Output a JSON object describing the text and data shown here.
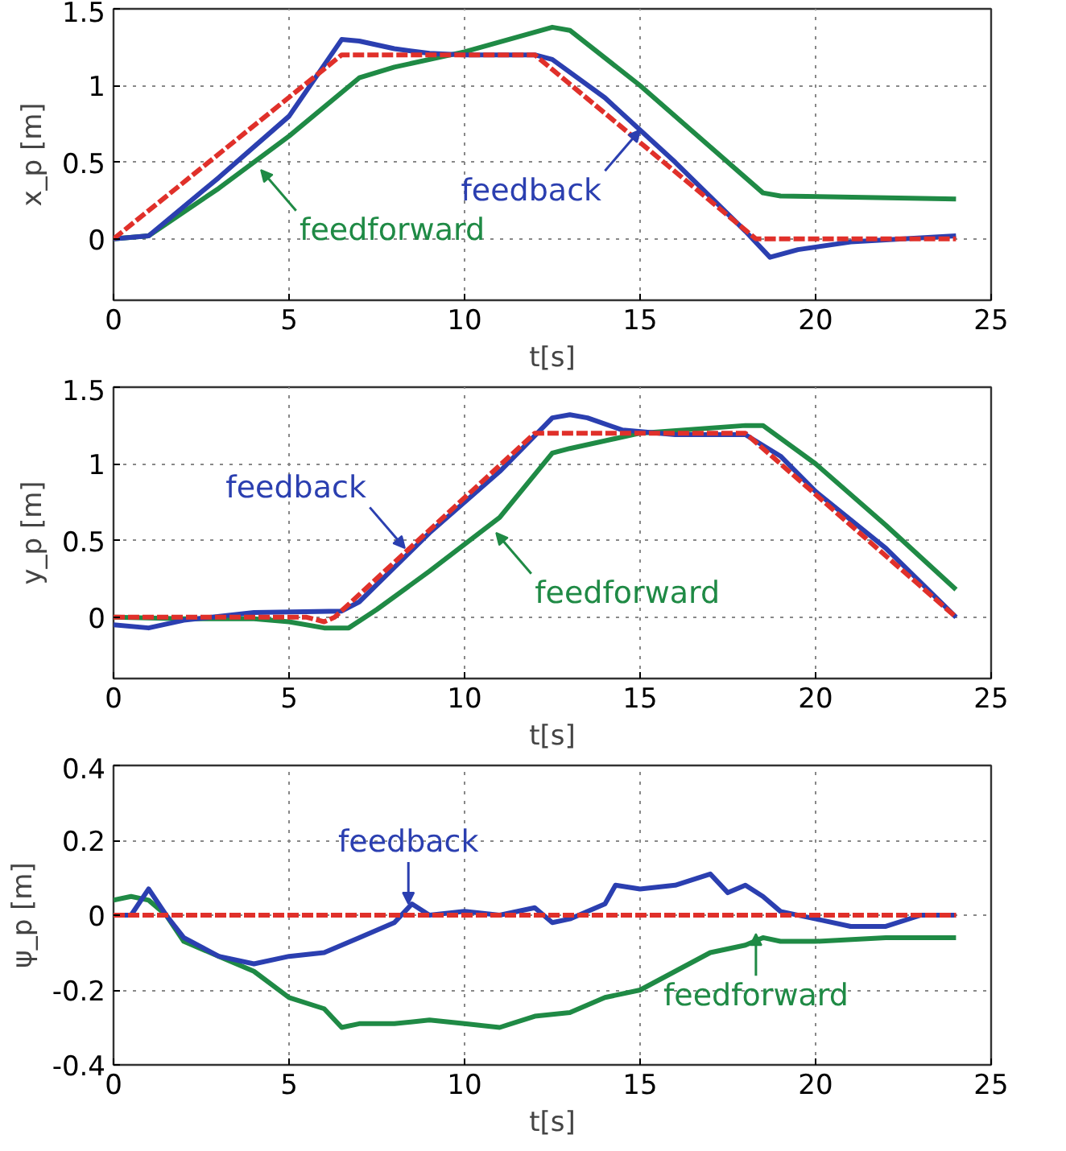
{
  "chart_data": [
    {
      "type": "line",
      "xlabel": "t[s]",
      "ylabel": "x_p [m]",
      "xlim": [
        0,
        25
      ],
      "xticks": [
        0,
        5,
        10,
        15,
        20,
        25
      ],
      "ylim": [
        -0.4,
        1.5
      ],
      "yticks": [
        0,
        0.5,
        1,
        1.5
      ],
      "grid": true,
      "series": [
        {
          "color": "#e0302a",
          "line_style": "dashed",
          "x": [
            0,
            6.5,
            12,
            18.3,
            24
          ],
          "values": [
            0,
            1.2,
            1.2,
            0,
            0
          ]
        },
        {
          "color": "#1f8a45",
          "x": [
            0,
            1,
            3,
            5,
            7,
            8,
            10,
            12.5,
            13,
            15,
            17,
            18.5,
            19,
            24
          ],
          "values": [
            0,
            0.02,
            0.33,
            0.67,
            1.05,
            1.12,
            1.22,
            1.38,
            1.36,
            1.0,
            0.6,
            0.3,
            0.28,
            0.26
          ]
        },
        {
          "color": "#2b3fb0",
          "x": [
            0,
            1,
            3,
            5,
            6.5,
            7,
            8,
            9,
            10,
            12,
            12.5,
            14,
            16,
            18,
            18.7,
            19.5,
            21,
            24
          ],
          "values": [
            0,
            0.02,
            0.4,
            0.8,
            1.3,
            1.29,
            1.24,
            1.21,
            1.2,
            1.2,
            1.17,
            0.92,
            0.5,
            0.05,
            -0.12,
            -0.07,
            -0.02,
            0.02
          ]
        }
      ],
      "annotations": [
        {
          "text": "feedforward",
          "x": 4.2,
          "y": 0.45
        },
        {
          "text": "feedback",
          "x": 15,
          "y": 0.71
        }
      ]
    },
    {
      "type": "line",
      "xlabel": "t[s]",
      "ylabel": "y_p [m]",
      "xlim": [
        0,
        25
      ],
      "xticks": [
        0,
        5,
        10,
        15,
        20,
        25
      ],
      "ylim": [
        -0.4,
        1.5
      ],
      "yticks": [
        0,
        0.5,
        1,
        1.5
      ],
      "grid": true,
      "series": [
        {
          "color": "#e0302a",
          "line_style": "dashed",
          "x": [
            0,
            5.5,
            6,
            6.3,
            12,
            18,
            24
          ],
          "values": [
            0,
            0,
            -0.03,
            0,
            1.2,
            1.2,
            0
          ]
        },
        {
          "color": "#1f8a45",
          "x": [
            0,
            2,
            4,
            5,
            6,
            6.7,
            7.5,
            9,
            11,
            12.5,
            13,
            15,
            18,
            18.5,
            20,
            22,
            24
          ],
          "values": [
            0,
            -0.01,
            -0.01,
            -0.03,
            -0.07,
            -0.07,
            0.05,
            0.3,
            0.65,
            1.07,
            1.1,
            1.2,
            1.25,
            1.25,
            1.0,
            0.6,
            0.18
          ]
        },
        {
          "color": "#2b3fb0",
          "x": [
            0,
            1,
            2,
            4,
            6.5,
            7,
            9,
            11,
            12.5,
            13,
            13.5,
            14.5,
            16,
            18,
            19,
            20,
            22,
            24
          ],
          "values": [
            -0.05,
            -0.07,
            -0.02,
            0.03,
            0.04,
            0.1,
            0.55,
            0.95,
            1.3,
            1.32,
            1.3,
            1.22,
            1.19,
            1.19,
            1.05,
            0.82,
            0.45,
            0
          ]
        }
      ],
      "annotations": [
        {
          "text": "feedback",
          "x": 8.3,
          "y": 0.45
        },
        {
          "text": "feedforward",
          "x": 10.9,
          "y": 0.55
        }
      ]
    },
    {
      "type": "line",
      "xlabel": "t[s]",
      "ylabel": "ψ_p [m]",
      "xlim": [
        0,
        25
      ],
      "xticks": [
        0,
        5,
        10,
        15,
        20,
        25
      ],
      "ylim": [
        -0.4,
        0.4
      ],
      "yticks": [
        -0.4,
        -0.2,
        0,
        0.2,
        0.4
      ],
      "grid": true,
      "series": [
        {
          "color": "#e0302a",
          "line_style": "dashed",
          "x": [
            0,
            24
          ],
          "values": [
            0,
            0
          ]
        },
        {
          "color": "#1f8a45",
          "x": [
            0,
            0.5,
            1,
            1.5,
            2,
            3,
            4,
            5,
            6,
            6.5,
            7,
            8,
            9,
            10,
            11,
            12,
            13,
            14,
            15,
            16,
            17,
            18,
            18.5,
            19,
            20,
            22,
            24
          ],
          "values": [
            0.04,
            0.05,
            0.04,
            0.0,
            -0.07,
            -0.11,
            -0.15,
            -0.22,
            -0.25,
            -0.3,
            -0.29,
            -0.29,
            -0.28,
            -0.29,
            -0.3,
            -0.27,
            -0.26,
            -0.22,
            -0.2,
            -0.15,
            -0.1,
            -0.08,
            -0.06,
            -0.07,
            -0.07,
            -0.06,
            -0.06
          ]
        },
        {
          "color": "#2b3fb0",
          "x": [
            0,
            0.5,
            1,
            1.5,
            2,
            3,
            4,
            5,
            6,
            7,
            8,
            8.5,
            9,
            10,
            11,
            12,
            12.5,
            13,
            14,
            14.3,
            15,
            16,
            17,
            17.5,
            18,
            18.5,
            19,
            20,
            21,
            22,
            23,
            24
          ],
          "values": [
            0,
            0,
            0.07,
            0,
            -0.06,
            -0.11,
            -0.13,
            -0.11,
            -0.1,
            -0.06,
            -0.02,
            0.03,
            0,
            0.01,
            0,
            0.02,
            -0.02,
            -0.01,
            0.03,
            0.08,
            0.07,
            0.08,
            0.11,
            0.06,
            0.08,
            0.05,
            0.01,
            -0.01,
            -0.03,
            -0.03,
            0,
            0
          ]
        }
      ],
      "annotations": [
        {
          "text": "feedback",
          "x": 8.4,
          "y": 0.03
        },
        {
          "text": "feedforward",
          "x": 18.3,
          "y": -0.05
        }
      ]
    }
  ]
}
